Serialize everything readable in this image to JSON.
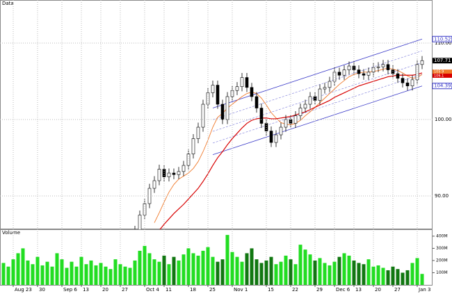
{
  "chart_data": {
    "type": "candlestick",
    "title": "Data",
    "volume_title": "Volume",
    "categories": [
      null,
      null,
      "Aug 23",
      null,
      null,
      null,
      null,
      "30",
      null,
      null,
      null,
      null,
      "Sep 6",
      null,
      null,
      null,
      "13",
      null,
      null,
      null,
      "20",
      null,
      null,
      null,
      "27",
      null,
      null,
      null,
      null,
      "Oct 4",
      null,
      null,
      null,
      "11",
      null,
      null,
      null,
      null,
      "18",
      null,
      null,
      null,
      "25",
      null,
      null,
      null,
      null,
      "Nov 1",
      null,
      null,
      null,
      null,
      null,
      null,
      "15",
      null,
      null,
      null,
      null,
      "22",
      null,
      null,
      null,
      null,
      "29",
      null,
      null,
      null,
      "Dec 6",
      null,
      null,
      null,
      "13",
      null,
      null,
      null,
      "20",
      null,
      null,
      null,
      "27",
      null,
      null,
      null,
      null,
      "Jan 3",
      null
    ],
    "open": [
      null,
      null,
      null,
      null,
      null,
      null,
      null,
      null,
      null,
      null,
      null,
      null,
      null,
      null,
      null,
      null,
      null,
      null,
      null,
      null,
      null,
      null,
      null,
      null,
      null,
      null,
      null,
      84.5,
      85.5,
      87.5,
      89,
      91,
      92,
      93.5,
      92.5,
      93,
      92.8,
      93.2,
      94,
      95.5,
      97.5,
      99,
      102,
      103.5,
      104.5,
      102,
      100,
      103,
      103.8,
      104.3,
      105.5,
      104.2,
      103,
      101.5,
      99.5,
      98.5,
      97,
      98,
      99,
      100,
      99.5,
      100.5,
      101.5,
      102,
      103,
      102.5,
      104,
      104.2,
      105,
      106.2,
      105.8,
      106.5,
      107,
      106.5,
      106,
      105.8,
      106.2,
      106.8,
      106.9,
      107.2,
      106.5,
      106,
      105.4,
      104.8,
      104.4,
      105.2,
      107.2
    ],
    "high": [
      null,
      null,
      null,
      null,
      null,
      null,
      null,
      null,
      null,
      null,
      null,
      null,
      null,
      null,
      null,
      null,
      null,
      null,
      null,
      null,
      null,
      null,
      null,
      null,
      null,
      null,
      null,
      86.1,
      88.1,
      89.6,
      91.6,
      92.6,
      94.1,
      94.1,
      93.6,
      93.6,
      93.8,
      94.6,
      96.1,
      98.1,
      99.6,
      102.6,
      104.1,
      105.1,
      105.1,
      102.6,
      103.6,
      104.4,
      104.9,
      106.1,
      106.1,
      104.8,
      103.6,
      102.1,
      100.1,
      99.1,
      98.6,
      99.6,
      100.6,
      100.6,
      101.1,
      102.1,
      102.6,
      103.6,
      103.6,
      104.6,
      104.8,
      105.6,
      106.8,
      106.8,
      107.1,
      107.6,
      107.6,
      107.1,
      106.6,
      106.8,
      107.4,
      107.5,
      107.8,
      107.8,
      107.1,
      106.6,
      106,
      105.4,
      105.8,
      107.8,
      108.31
    ],
    "low": [
      null,
      null,
      null,
      null,
      null,
      null,
      null,
      null,
      null,
      null,
      null,
      null,
      null,
      null,
      null,
      null,
      null,
      null,
      null,
      null,
      null,
      null,
      null,
      null,
      null,
      null,
      null,
      83.9,
      84.9,
      86.9,
      88.4,
      90.4,
      91.4,
      91.9,
      91.9,
      92.2,
      92.2,
      92.6,
      93.4,
      94.9,
      96.9,
      98.4,
      101.4,
      102.9,
      101.4,
      99.4,
      99.4,
      102.4,
      103.2,
      103.7,
      103.6,
      102.4,
      100.9,
      98.9,
      97.9,
      96.4,
      96.4,
      97.4,
      98.4,
      98.9,
      98.9,
      99.9,
      100.9,
      101.4,
      101.9,
      101.9,
      103.4,
      103.6,
      104.4,
      105.2,
      105.2,
      105.9,
      105.9,
      105.4,
      105.2,
      105.2,
      105.6,
      106.2,
      106.3,
      105.9,
      105.4,
      104.8,
      104.2,
      103.8,
      103.8,
      104.6,
      106.6
    ],
    "close": [
      null,
      null,
      null,
      null,
      null,
      null,
      null,
      null,
      null,
      null,
      null,
      null,
      null,
      null,
      null,
      null,
      null,
      null,
      null,
      null,
      null,
      null,
      null,
      null,
      null,
      null,
      null,
      85.5,
      87.5,
      89,
      91,
      92,
      93.5,
      92.5,
      93,
      92.8,
      93.2,
      94,
      95.5,
      97.5,
      99,
      102,
      103.5,
      104.5,
      102,
      100,
      103,
      103.8,
      104.3,
      105.5,
      104.2,
      103,
      101.5,
      99.5,
      98.5,
      97,
      98,
      99,
      100,
      99.5,
      100.5,
      101.5,
      102,
      103,
      102.5,
      104,
      104.2,
      105,
      106.2,
      105.8,
      106.5,
      107,
      106.5,
      106,
      105.8,
      106.2,
      106.8,
      106.9,
      107.2,
      106.5,
      106,
      105.4,
      104.8,
      104.4,
      105.2,
      107.2,
      107.71
    ],
    "series": [
      {
        "color": "#f07828",
        "values": [
          null,
          null,
          null,
          null,
          null,
          null,
          null,
          null,
          null,
          null,
          null,
          null,
          null,
          null,
          null,
          null,
          null,
          null,
          null,
          null,
          null,
          null,
          null,
          null,
          null,
          null,
          null,
          null,
          null,
          null,
          null,
          86.5,
          87.8,
          89.2,
          90.5,
          91.5,
          92.2,
          92.6,
          93,
          93.6,
          94.5,
          95.8,
          97.3,
          99,
          100.3,
          100.8,
          101.5,
          102,
          102.5,
          103,
          103.4,
          103.6,
          103.4,
          102.8,
          101.9,
          100.9,
          100.2,
          99.6,
          99.4,
          99.3,
          99.5,
          99.9,
          100.5,
          101,
          101.6,
          102.2,
          102.8,
          103.4,
          104,
          104.6,
          105.1,
          105.6,
          105.9,
          106.1,
          106.2,
          106.2,
          106.3,
          106.4,
          106.6,
          106.7,
          106.6,
          106.4,
          106.1,
          105.7,
          105.4,
          105.5,
          105.9
        ]
      },
      {
        "color": "#d80000",
        "values": [
          null,
          null,
          null,
          null,
          null,
          null,
          null,
          null,
          null,
          null,
          null,
          null,
          null,
          null,
          null,
          null,
          null,
          null,
          null,
          null,
          null,
          null,
          null,
          null,
          null,
          null,
          null,
          null,
          null,
          null,
          null,
          null,
          85.5,
          86.3,
          87,
          87.7,
          88.3,
          88.9,
          89.6,
          90.3,
          91,
          91.9,
          92.9,
          94,
          95,
          95.8,
          96.7,
          97.5,
          98.2,
          98.9,
          99.5,
          99.9,
          100.1,
          100.2,
          100.2,
          100.1,
          100.1,
          100.2,
          100.3,
          100.4,
          100.6,
          100.8,
          101,
          101.3,
          101.6,
          101.9,
          102.2,
          102.5,
          102.9,
          103.2,
          103.5,
          103.8,
          104.1,
          104.4,
          104.6,
          104.8,
          105,
          105.2,
          105.4,
          105.6,
          105.7,
          105.8,
          105.8,
          105.8,
          105.8,
          105.9,
          106.1
        ]
      }
    ],
    "channel": {
      "color": "#3838c8",
      "x": [
        43,
        86
      ],
      "upper": [
        101.5,
        110.5256
      ],
      "lower": [
        95.4,
        104.3921
      ]
    },
    "volume": [
      180,
      150,
      210,
      260,
      300,
      200,
      170,
      230,
      160,
      190,
      150,
      260,
      210,
      140,
      190,
      150,
      230,
      170,
      200,
      160,
      180,
      150,
      130,
      210,
      170,
      150,
      140,
      200,
      280,
      320,
      260,
      210,
      190,
      240,
      170,
      230,
      200,
      250,
      300,
      260,
      240,
      280,
      310,
      230,
      190,
      210,
      410,
      270,
      230,
      190,
      260,
      300,
      210,
      180,
      200,
      230,
      170,
      190,
      240,
      210,
      170,
      330,
      290,
      250,
      200,
      220,
      180,
      160,
      190,
      230,
      260,
      240,
      200,
      180,
      170,
      210,
      150,
      160,
      140,
      120,
      150,
      130,
      100,
      120,
      180,
      220,
      90
    ],
    "ylim": [
      85.64,
      115.64
    ],
    "yticks": [
      {
        "value": 90,
        "label": "90.00"
      },
      {
        "value": 100,
        "label": "100.00"
      },
      {
        "value": 110,
        "label": "110.00"
      }
    ],
    "vlim": [
      0,
      445
    ],
    "vticks": [
      {
        "value": 100,
        "label": "100M"
      },
      {
        "value": 200,
        "label": "200M"
      },
      {
        "value": 300,
        "label": "300M"
      },
      {
        "value": 400,
        "label": "400M"
      }
    ],
    "grid": true
  }
}
